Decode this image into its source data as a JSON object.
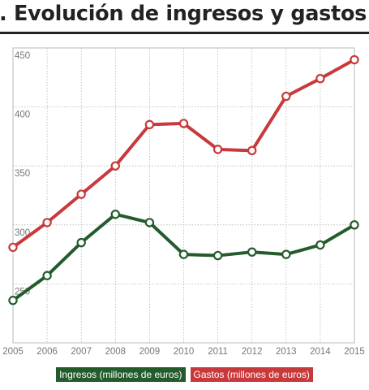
{
  "title": ". Evolución de ingresos y gastos",
  "colors": {
    "ingresos": "#245b2c",
    "gastos": "#c8393b"
  },
  "chart_data": {
    "type": "line",
    "title": ". Evolución de ingresos y gastos",
    "xlabel": "",
    "ylabel": "",
    "x": [
      "2005",
      "2006",
      "2007",
      "2008",
      "2009",
      "2010",
      "2011",
      "2012",
      "2013",
      "2014",
      "2015"
    ],
    "ylim": [
      200,
      450
    ],
    "yticks": [
      250,
      300,
      350,
      400,
      450
    ],
    "grid": true,
    "legend": "bottom",
    "series": [
      {
        "name": "Ingresos (millones de euros)",
        "color": "#245b2c",
        "values": [
          236,
          257,
          285,
          309,
          302,
          275,
          274,
          277,
          275,
          283,
          300
        ]
      },
      {
        "name": "Gastos (millones de euros)",
        "color": "#c8393b",
        "values": [
          281,
          302,
          326,
          350,
          385,
          386,
          364,
          363,
          409,
          424,
          440
        ]
      }
    ]
  }
}
